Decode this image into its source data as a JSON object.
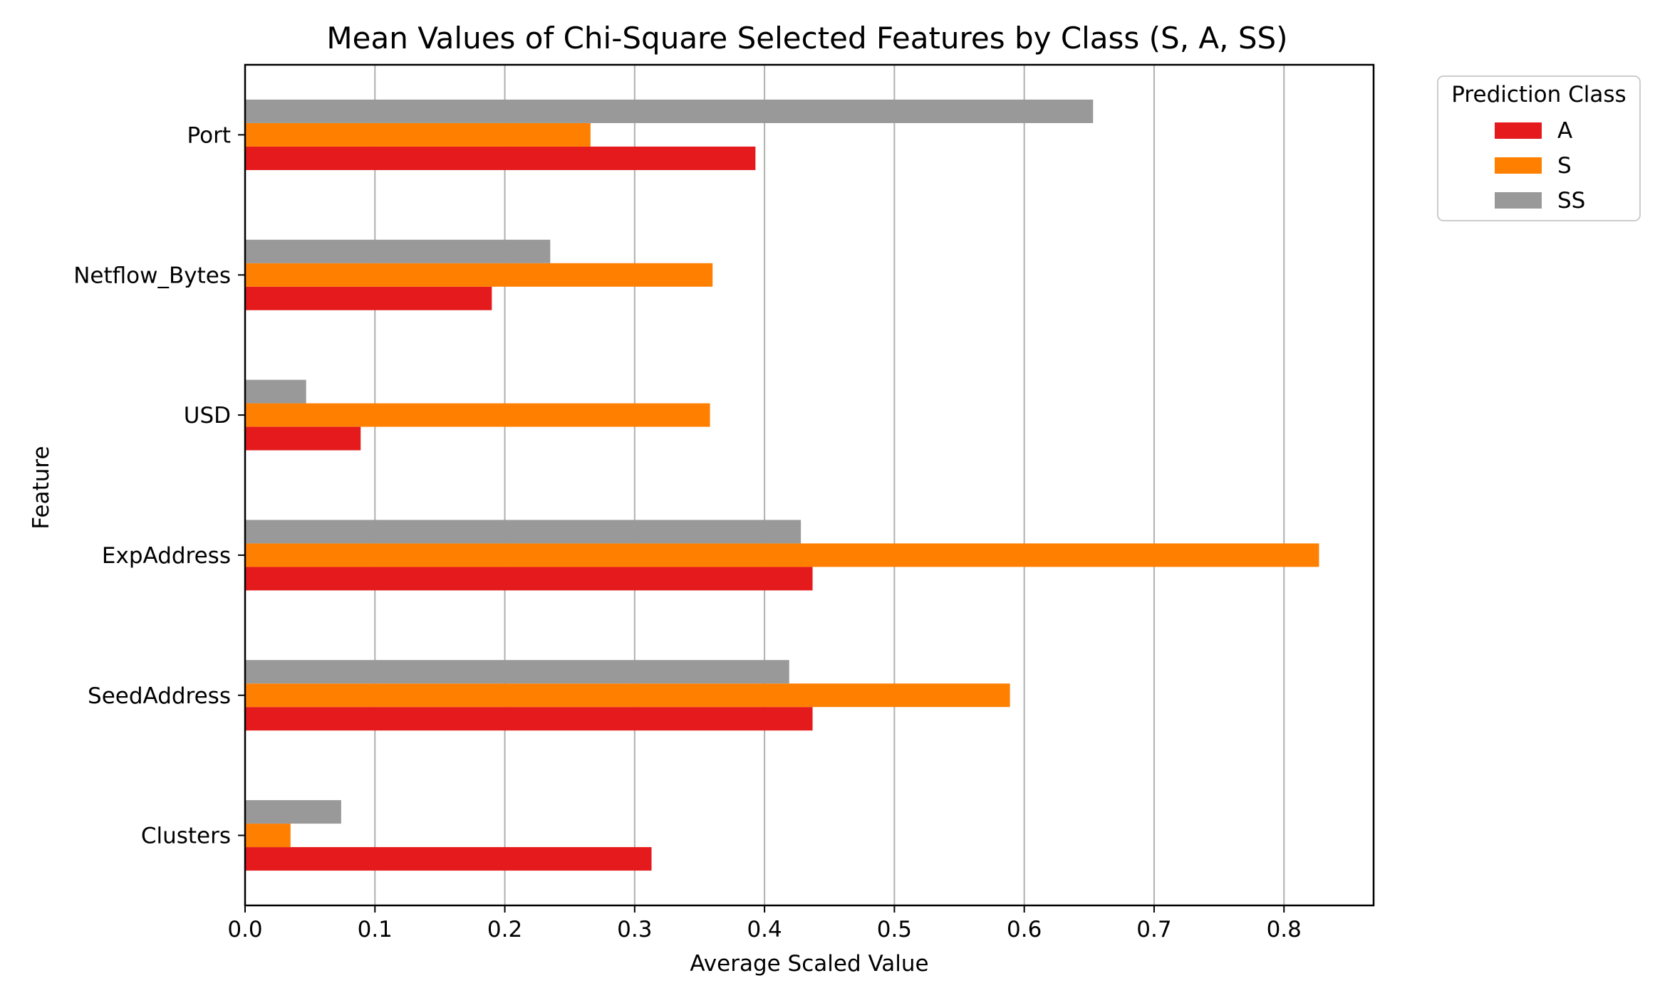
{
  "chart_data": {
    "type": "bar",
    "orientation": "horizontal",
    "title": "Mean Values of Chi-Square Selected Features by Class (S, A, SS)",
    "xlabel": "Average Scaled Value",
    "ylabel": "Feature",
    "categories": [
      "Port",
      "Netflow_Bytes",
      "USD",
      "ExpAddress",
      "SeedAddress",
      "Clusters"
    ],
    "series": [
      {
        "name": "A",
        "color": "#e41a1c",
        "values": [
          0.393,
          0.19,
          0.089,
          0.437,
          0.437,
          0.313
        ]
      },
      {
        "name": "S",
        "color": "#ff7f00",
        "values": [
          0.266,
          0.36,
          0.358,
          0.827,
          0.589,
          0.035
        ]
      },
      {
        "name": "SS",
        "color": "#999999",
        "values": [
          0.653,
          0.235,
          0.047,
          0.428,
          0.419,
          0.074
        ]
      }
    ],
    "xlim": [
      0,
      0.869
    ],
    "xticks": [
      "0.0",
      "0.1",
      "0.2",
      "0.3",
      "0.4",
      "0.5",
      "0.6",
      "0.7",
      "0.8"
    ],
    "grid": "vertical",
    "legend": {
      "title": "Prediction Class",
      "placement": "outside-top-right"
    }
  }
}
